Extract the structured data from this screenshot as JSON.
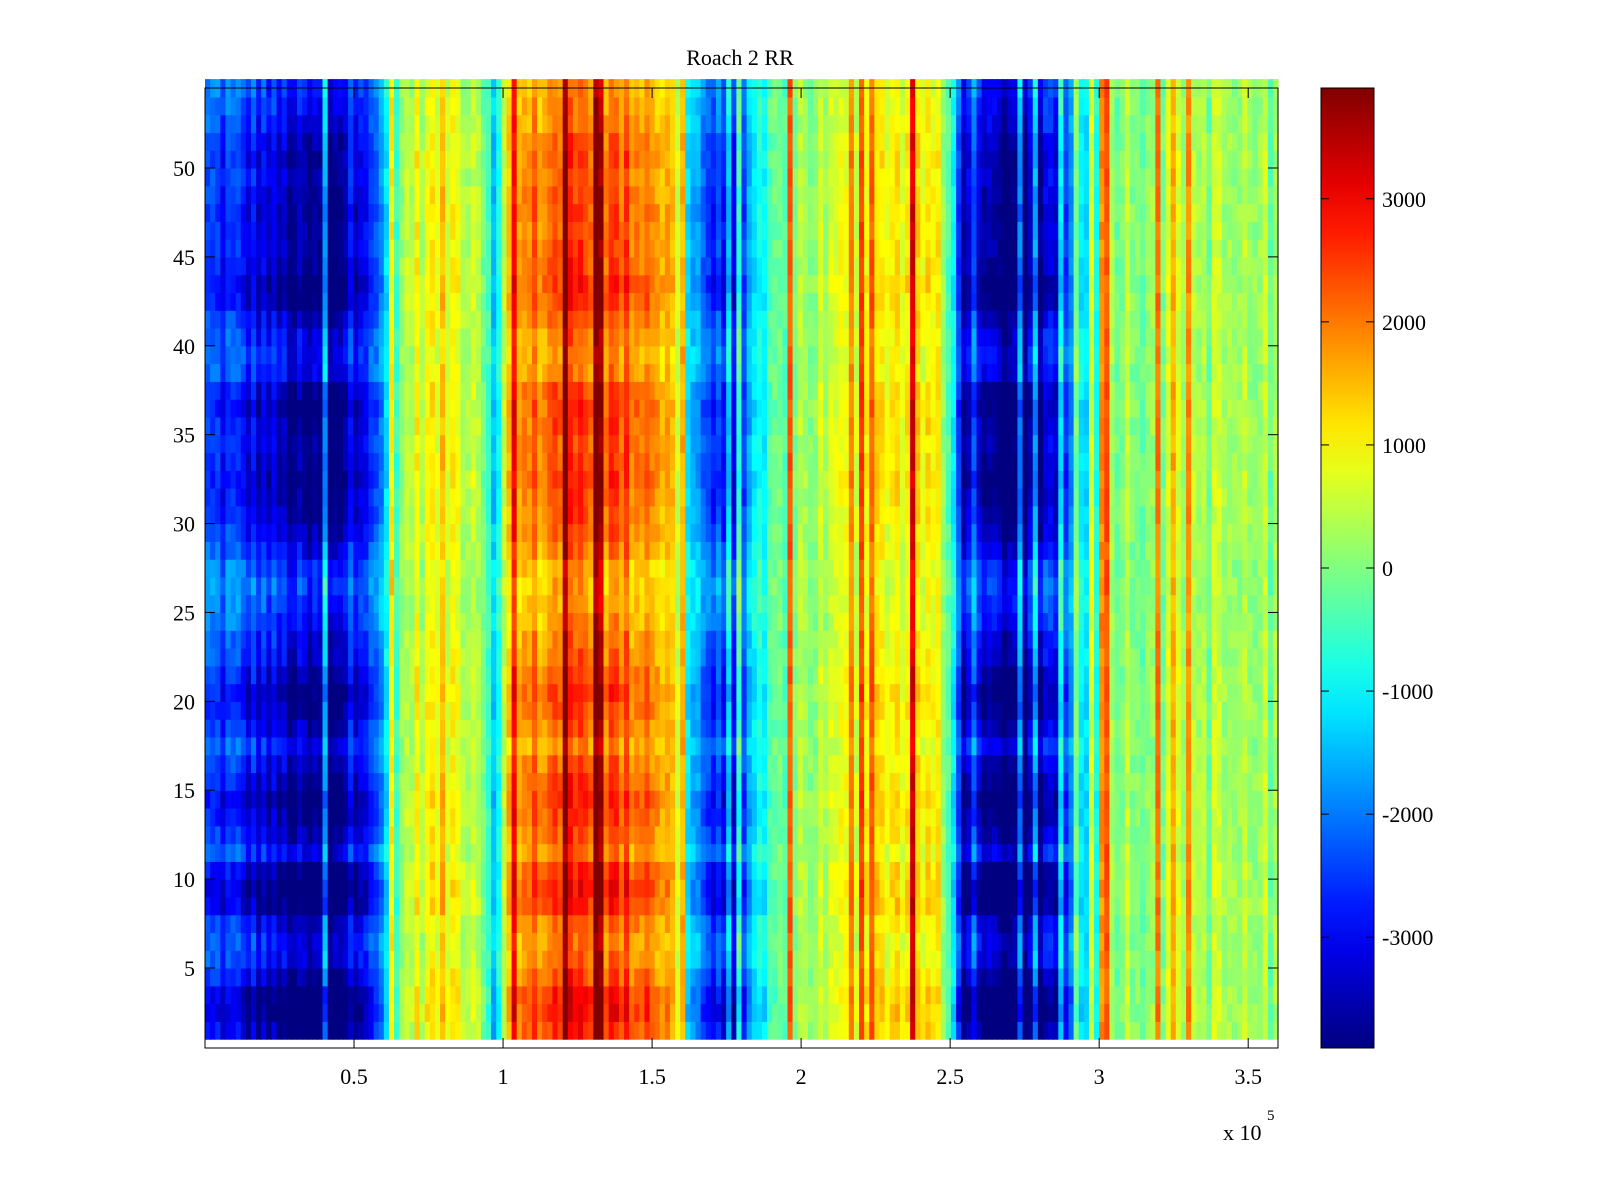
{
  "chart_data": {
    "type": "heatmap",
    "title": "Roach 2 RR",
    "xlabel": "",
    "ylabel": "",
    "colormap": "jet",
    "grid": false,
    "x_scale_exponent_label": {
      "base": "x 10",
      "exponent": "5"
    },
    "xlim": [
      0,
      360000
    ],
    "ylim": [
      0.5,
      54.5
    ],
    "x_ticks": [
      50000,
      100000,
      150000,
      200000,
      250000,
      300000,
      350000
    ],
    "x_tick_labels": [
      "0.5",
      "1",
      "1.5",
      "2",
      "2.5",
      "3",
      "3.5"
    ],
    "y_ticks": [
      5,
      10,
      15,
      20,
      25,
      30,
      35,
      40,
      45,
      50
    ],
    "y_tick_labels": [
      "5",
      "10",
      "15",
      "20",
      "25",
      "30",
      "35",
      "40",
      "45",
      "50"
    ],
    "colorbar": {
      "clim": [
        -3900,
        3900
      ],
      "ticks": [
        -3000,
        -2000,
        -1000,
        0,
        1000,
        2000,
        3000
      ],
      "tick_labels": [
        "-3000",
        "-2000",
        "-1000",
        "0",
        "1000",
        "2000",
        "3000"
      ]
    },
    "rows": 54,
    "x_profile": {
      "x": [
        0,
        8000,
        20000,
        35000,
        45000,
        52000,
        60000,
        68000,
        80000,
        92000,
        98000,
        102000,
        115000,
        130000,
        150000,
        158000,
        162000,
        170000,
        178000,
        185000,
        195000,
        210000,
        230000,
        245000,
        250000,
        255000,
        265000,
        280000,
        288000,
        295000,
        305000,
        330000,
        360000
      ],
      "values": [
        -2200,
        -2300,
        -2700,
        -3400,
        -3200,
        -2400,
        -1500,
        500,
        900,
        500,
        -1200,
        1200,
        1900,
        2100,
        1800,
        1000,
        -1000,
        -2200,
        -2600,
        -1200,
        100,
        400,
        1000,
        900,
        -500,
        -3000,
        -3400,
        -3300,
        -2300,
        -800,
        200,
        300,
        100
      ]
    },
    "row_modulation": {
      "rows": [
        1,
        2,
        3,
        4,
        5,
        6,
        7,
        8,
        9,
        10,
        11,
        12,
        13,
        14,
        15,
        16,
        17,
        18,
        19,
        20,
        21,
        22,
        23,
        24,
        25,
        26,
        27,
        28,
        29,
        30,
        31,
        32,
        33,
        34,
        35,
        36,
        37,
        38,
        39,
        40,
        41,
        42,
        43,
        44,
        45,
        46,
        47,
        48,
        49,
        50,
        51,
        52,
        53,
        54
      ],
      "gain": [
        1.3,
        1.45,
        1.4,
        1.2,
        1.05,
        1.0,
        1.1,
        1.35,
        1.4,
        1.3,
        1.0,
        1.15,
        1.25,
        1.3,
        1.2,
        1.1,
        0.95,
        1.1,
        1.2,
        1.25,
        1.15,
        1.05,
        1.0,
        0.9,
        0.85,
        0.8,
        0.85,
        1.0,
        1.1,
        1.15,
        1.2,
        1.25,
        1.2,
        1.15,
        1.2,
        1.25,
        1.2,
        1.0,
        0.95,
        1.0,
        1.1,
        1.25,
        1.3,
        1.2,
        1.15,
        1.15,
        1.2,
        1.15,
        1.1,
        1.15,
        1.1,
        1.0,
        0.95,
        0.9
      ]
    }
  }
}
